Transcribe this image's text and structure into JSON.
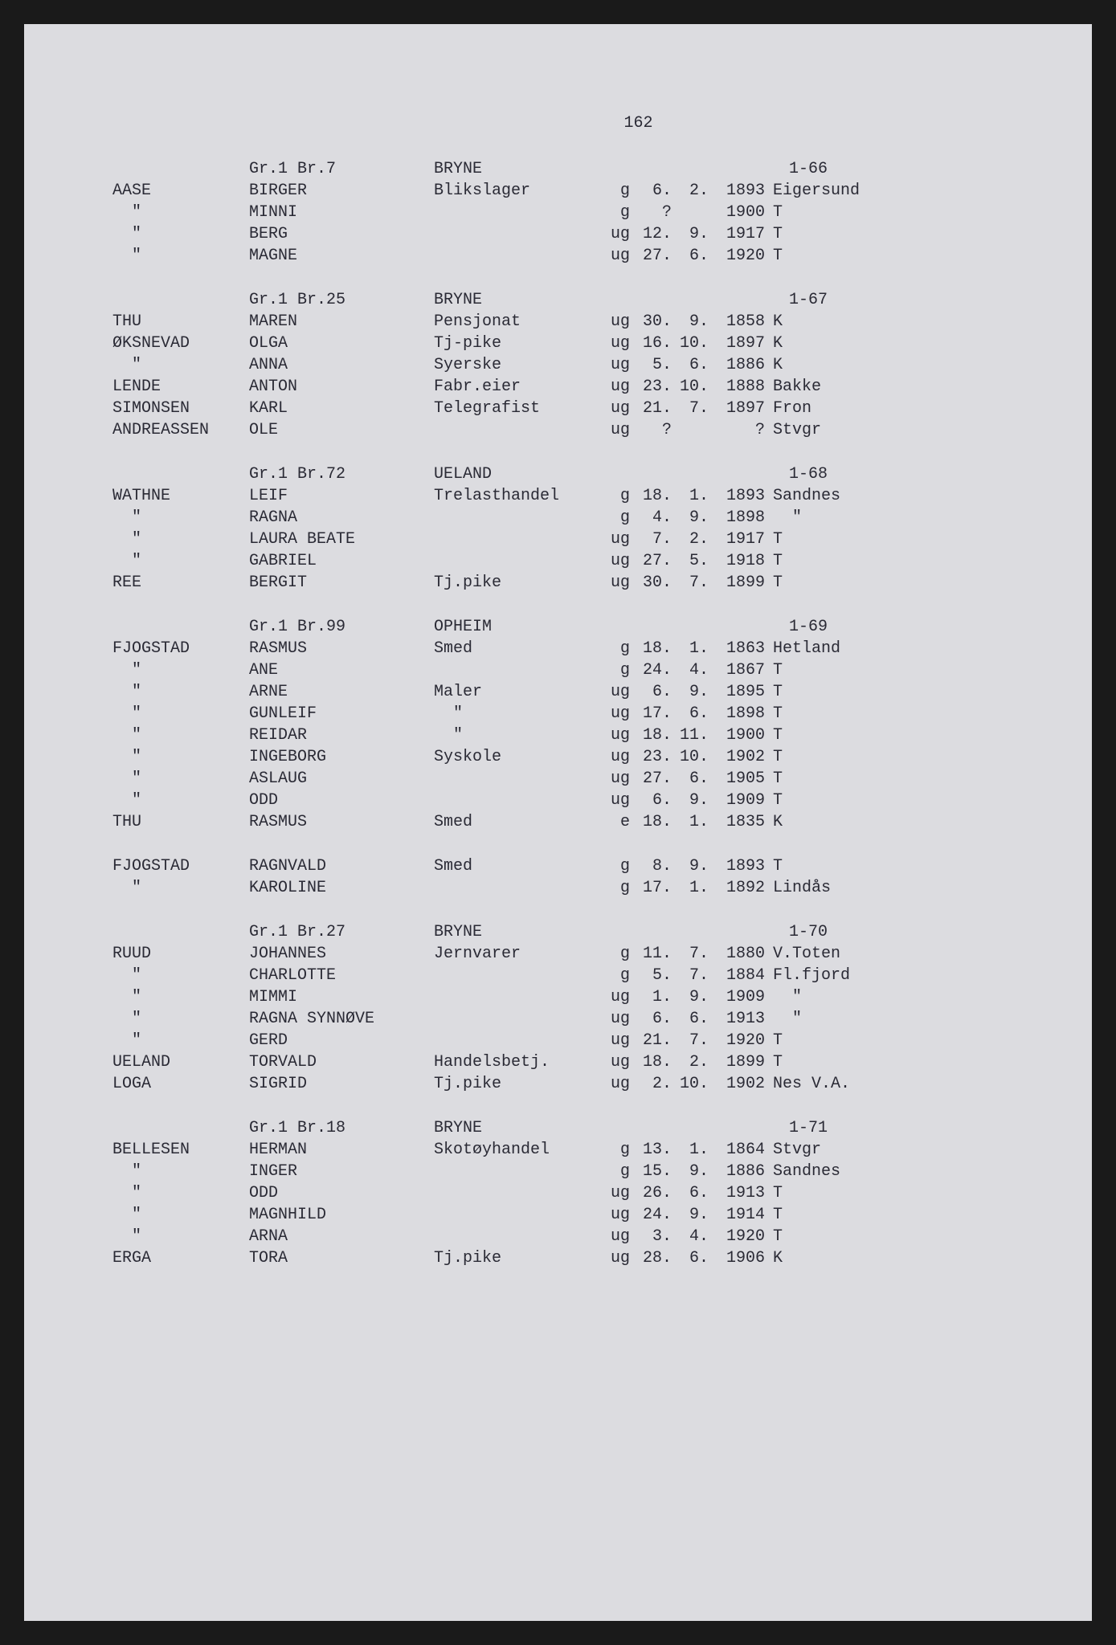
{
  "pageNumber": "162",
  "sections": [
    {
      "header": {
        "gr": "Gr.1 Br.7",
        "place": "BRYNE",
        "ref": "1-66"
      },
      "rows": [
        {
          "surname": "AASE",
          "given": "BIRGER",
          "occupation": "Blikslager",
          "status": "g",
          "day": "6.",
          "month": "2.",
          "year": "1893",
          "place": "Eigersund"
        },
        {
          "surname": "\"",
          "given": "MINNI",
          "occupation": "",
          "status": "g",
          "day": "?",
          "month": "",
          "year": "1900",
          "place": "T"
        },
        {
          "surname": "\"",
          "given": "BERG",
          "occupation": "",
          "status": "ug",
          "day": "12.",
          "month": "9.",
          "year": "1917",
          "place": "T"
        },
        {
          "surname": "\"",
          "given": "MAGNE",
          "occupation": "",
          "status": "ug",
          "day": "27.",
          "month": "6.",
          "year": "1920",
          "place": "T"
        }
      ]
    },
    {
      "header": {
        "gr": "Gr.1 Br.25",
        "place": "BRYNE",
        "ref": "1-67"
      },
      "rows": [
        {
          "surname": "THU",
          "given": "MAREN",
          "occupation": "Pensjonat",
          "status": "ug",
          "day": "30.",
          "month": "9.",
          "year": "1858",
          "place": "K"
        },
        {
          "surname": "ØKSNEVAD",
          "given": "OLGA",
          "occupation": "Tj-pike",
          "status": "ug",
          "day": "16.",
          "month": "10.",
          "year": "1897",
          "place": "K"
        },
        {
          "surname": "\"",
          "given": "ANNA",
          "occupation": "Syerske",
          "status": "ug",
          "day": "5.",
          "month": "6.",
          "year": "1886",
          "place": "K"
        },
        {
          "surname": "LENDE",
          "given": "ANTON",
          "occupation": "Fabr.eier",
          "status": "ug",
          "day": "23.",
          "month": "10.",
          "year": "1888",
          "place": "Bakke"
        },
        {
          "surname": "SIMONSEN",
          "given": "KARL",
          "occupation": "Telegrafist",
          "status": "ug",
          "day": "21.",
          "month": "7.",
          "year": "1897",
          "place": "Fron"
        },
        {
          "surname": "ANDREASSEN",
          "given": "OLE",
          "occupation": "",
          "status": "ug",
          "day": "?",
          "month": "",
          "year": "?",
          "place": "Stvgr"
        }
      ]
    },
    {
      "header": {
        "gr": "Gr.1 Br.72",
        "place": "UELAND",
        "ref": "1-68"
      },
      "rows": [
        {
          "surname": "WATHNE",
          "given": "LEIF",
          "occupation": "Trelasthandel",
          "status": "g",
          "day": "18.",
          "month": "1.",
          "year": "1893",
          "place": "Sandnes"
        },
        {
          "surname": "\"",
          "given": "RAGNA",
          "occupation": "",
          "status": "g",
          "day": "4.",
          "month": "9.",
          "year": "1898",
          "place": "\""
        },
        {
          "surname": "\"",
          "given": "LAURA BEATE",
          "occupation": "",
          "status": "ug",
          "day": "7.",
          "month": "2.",
          "year": "1917",
          "place": "T"
        },
        {
          "surname": "\"",
          "given": "GABRIEL",
          "occupation": "",
          "status": "ug",
          "day": "27.",
          "month": "5.",
          "year": "1918",
          "place": "T"
        },
        {
          "surname": "REE",
          "given": "BERGIT",
          "occupation": "Tj.pike",
          "status": "ug",
          "day": "30.",
          "month": "7.",
          "year": "1899",
          "place": "T"
        }
      ]
    },
    {
      "header": {
        "gr": "Gr.1 Br.99",
        "place": "OPHEIM",
        "ref": "1-69"
      },
      "rows": [
        {
          "surname": "FJOGSTAD",
          "given": "RASMUS",
          "occupation": "Smed",
          "status": "g",
          "day": "18.",
          "month": "1.",
          "year": "1863",
          "place": "Hetland"
        },
        {
          "surname": "\"",
          "given": "ANE",
          "occupation": "",
          "status": "g",
          "day": "24.",
          "month": "4.",
          "year": "1867",
          "place": "T"
        },
        {
          "surname": "\"",
          "given": "ARNE",
          "occupation": "Maler",
          "status": "ug",
          "day": "6.",
          "month": "9.",
          "year": "1895",
          "place": "T"
        },
        {
          "surname": "\"",
          "given": "GUNLEIF",
          "occupation": "\"",
          "status": "ug",
          "day": "17.",
          "month": "6.",
          "year": "1898",
          "place": "T"
        },
        {
          "surname": "\"",
          "given": "REIDAR",
          "occupation": "\"",
          "status": "ug",
          "day": "18.",
          "month": "11.",
          "year": "1900",
          "place": "T"
        },
        {
          "surname": "\"",
          "given": "INGEBORG",
          "occupation": "Syskole",
          "status": "ug",
          "day": "23.",
          "month": "10.",
          "year": "1902",
          "place": "T"
        },
        {
          "surname": "\"",
          "given": "ASLAUG",
          "occupation": "",
          "status": "ug",
          "day": "27.",
          "month": "6.",
          "year": "1905",
          "place": "T"
        },
        {
          "surname": "\"",
          "given": "ODD",
          "occupation": "",
          "status": "ug",
          "day": "6.",
          "month": "9.",
          "year": "1909",
          "place": "T"
        },
        {
          "surname": "THU",
          "given": "RASMUS",
          "occupation": "Smed",
          "status": "e",
          "day": "18.",
          "month": "1.",
          "year": "1835",
          "place": "K"
        }
      ]
    },
    {
      "header": null,
      "rows": [
        {
          "surname": "FJOGSTAD",
          "given": "RAGNVALD",
          "occupation": "Smed",
          "status": "g",
          "day": "8.",
          "month": "9.",
          "year": "1893",
          "place": "T"
        },
        {
          "surname": "\"",
          "given": "KAROLINE",
          "occupation": "",
          "status": "g",
          "day": "17.",
          "month": "1.",
          "year": "1892",
          "place": "Lindås"
        }
      ]
    },
    {
      "header": {
        "gr": "Gr.1 Br.27",
        "place": "BRYNE",
        "ref": "1-70"
      },
      "rows": [
        {
          "surname": "RUUD",
          "given": "JOHANNES",
          "occupation": "Jernvarer",
          "status": "g",
          "day": "11.",
          "month": "7.",
          "year": "1880",
          "place": "V.Toten"
        },
        {
          "surname": "\"",
          "given": "CHARLOTTE",
          "occupation": "",
          "status": "g",
          "day": "5.",
          "month": "7.",
          "year": "1884",
          "place": "Fl.fjord"
        },
        {
          "surname": "\"",
          "given": "MIMMI",
          "occupation": "",
          "status": "ug",
          "day": "1.",
          "month": "9.",
          "year": "1909",
          "place": "\""
        },
        {
          "surname": "\"",
          "given": "RAGNA SYNNØVE",
          "occupation": "",
          "status": "ug",
          "day": "6.",
          "month": "6.",
          "year": "1913",
          "place": "\""
        },
        {
          "surname": "\"",
          "given": "GERD",
          "occupation": "",
          "status": "ug",
          "day": "21.",
          "month": "7.",
          "year": "1920",
          "place": "T"
        },
        {
          "surname": "UELAND",
          "given": "TORVALD",
          "occupation": "Handelsbetj.",
          "status": "ug",
          "day": "18.",
          "month": "2.",
          "year": "1899",
          "place": "T"
        },
        {
          "surname": "LOGA",
          "given": "SIGRID",
          "occupation": "Tj.pike",
          "status": "ug",
          "day": "2.",
          "month": "10.",
          "year": "1902",
          "place": "Nes V.A."
        }
      ]
    },
    {
      "header": {
        "gr": "Gr.1 Br.18",
        "place": "BRYNE",
        "ref": "1-71"
      },
      "rows": [
        {
          "surname": "BELLESEN",
          "given": "HERMAN",
          "occupation": "Skotøyhandel",
          "status": "g",
          "day": "13.",
          "month": "1.",
          "year": "1864",
          "place": "Stvgr"
        },
        {
          "surname": "\"",
          "given": "INGER",
          "occupation": "",
          "status": "g",
          "day": "15.",
          "month": "9.",
          "year": "1886",
          "place": "Sandnes"
        },
        {
          "surname": "\"",
          "given": "ODD",
          "occupation": "",
          "status": "ug",
          "day": "26.",
          "month": "6.",
          "year": "1913",
          "place": "T"
        },
        {
          "surname": "\"",
          "given": "MAGNHILD",
          "occupation": "",
          "status": "ug",
          "day": "24.",
          "month": "9.",
          "year": "1914",
          "place": "T"
        },
        {
          "surname": "\"",
          "given": "ARNA",
          "occupation": "",
          "status": "ug",
          "day": "3.",
          "month": "4.",
          "year": "1920",
          "place": "T"
        },
        {
          "surname": "ERGA",
          "given": "TORA",
          "occupation": "Tj.pike",
          "status": "ug",
          "day": "28.",
          "month": "6.",
          "year": "1906",
          "place": "K"
        }
      ]
    }
  ]
}
